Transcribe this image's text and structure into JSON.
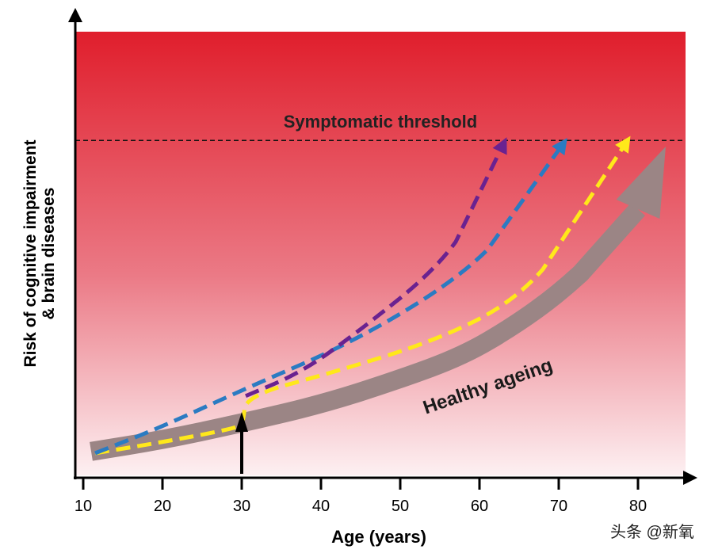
{
  "chart_data": {
    "type": "line",
    "title": "",
    "xlabel": "Age (years)",
    "ylabel_line1": "Risk of cognitive impairment",
    "ylabel_line2": "& brain diseases",
    "xlim": [
      10,
      86
    ],
    "ylim": [
      0,
      100
    ],
    "xticks": [
      10,
      20,
      30,
      40,
      50,
      60,
      70,
      80
    ],
    "threshold": {
      "label": "Symptomatic threshold",
      "value": 75.5
    },
    "marker_age": 30,
    "band_label": "Healthy ageing",
    "colors": {
      "bg_top": "#e01e2c",
      "bg_bottom": "#fdf0f2",
      "band": "#9b8585",
      "yellow": "#ffe81a",
      "blue": "#2b7bc2",
      "purple": "#6a2290"
    },
    "series": [
      {
        "name": "healthy-ageing",
        "color": "#9b8585",
        "points": [
          [
            11,
            5.4
          ],
          [
            20,
            8
          ],
          [
            29.5,
            11.6
          ],
          [
            40,
            16
          ],
          [
            49.5,
            21.4
          ],
          [
            58,
            27
          ],
          [
            64.5,
            33.9
          ],
          [
            70,
            41
          ],
          [
            75.5,
            50
          ],
          [
            80,
            60
          ],
          [
            83.5,
            74.1
          ]
        ]
      },
      {
        "name": "yellow",
        "color": "#ffe81a",
        "points": [
          [
            11.5,
            5
          ],
          [
            20,
            7.5
          ],
          [
            29.5,
            10.7
          ],
          [
            30.2,
            12
          ],
          [
            30.5,
            17.9
          ],
          [
            41.5,
            23.2
          ],
          [
            54.5,
            30.4
          ],
          [
            64.5,
            39.3
          ],
          [
            71.5,
            53.6
          ],
          [
            78.5,
            75
          ]
        ]
      },
      {
        "name": "blue",
        "color": "#2b7bc2",
        "points": [
          [
            11.5,
            5
          ],
          [
            20,
            11
          ],
          [
            29.5,
            18.8
          ],
          [
            44.5,
            30.4
          ],
          [
            57.5,
            44.6
          ],
          [
            64.5,
            57.1
          ],
          [
            70.5,
            74.6
          ]
        ]
      },
      {
        "name": "purple",
        "color": "#6a2290",
        "points": [
          [
            30.5,
            17.9
          ],
          [
            37.5,
            23.2
          ],
          [
            44.5,
            32.1
          ],
          [
            54.5,
            46.4
          ],
          [
            59.5,
            58.9
          ],
          [
            63,
            74.6
          ]
        ]
      }
    ]
  },
  "watermark": "头条 @新氧"
}
